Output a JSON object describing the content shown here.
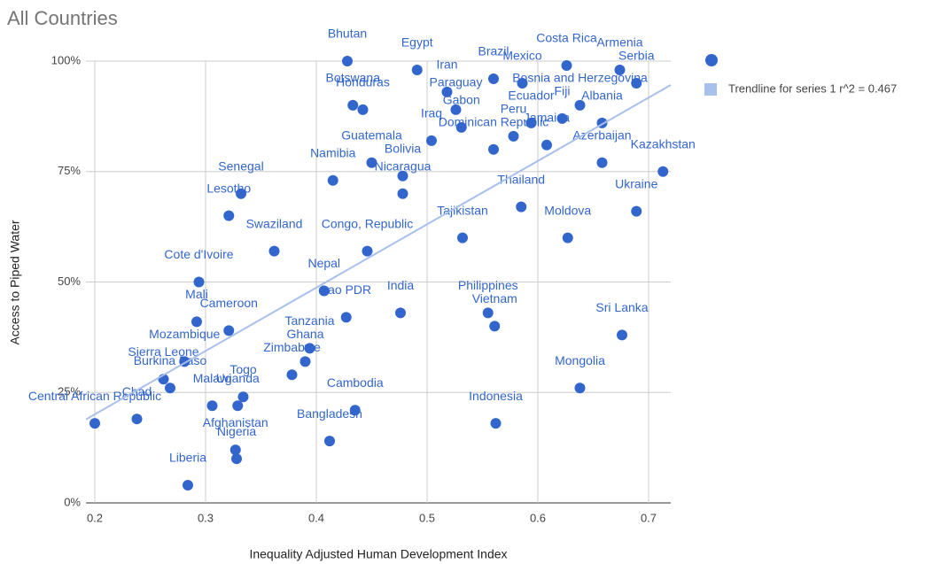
{
  "chart_data": {
    "type": "scatter",
    "title": "All Countries",
    "xlabel": "Inequality Adjusted Human Development Index",
    "ylabel": "Access to Piped Water",
    "xlim": [
      0.192,
      0.72
    ],
    "ylim": [
      0,
      100
    ],
    "xticks": [
      0.2,
      0.3,
      0.4,
      0.5,
      0.6,
      0.7
    ],
    "yticks": [
      {
        "value": 0,
        "label": "0%"
      },
      {
        "value": 25,
        "label": "25%"
      },
      {
        "value": 50,
        "label": "50%"
      },
      {
        "value": 75,
        "label": "75%"
      },
      {
        "value": 100,
        "label": "100%"
      }
    ],
    "grid": true,
    "legend": "right",
    "series": [
      {
        "color": "#3366cc",
        "labels": [
          "Bhutan",
          "Egypt",
          "Iran",
          "Brazil",
          "Mexico",
          "Costa Rica",
          "Armenia",
          "Serbia",
          "Botswana",
          "Honduras",
          "Bosnia and Herzegovina",
          "Paraguay",
          "Gabon",
          "Ecuador",
          "Fiji",
          "Albania",
          "Iraq",
          "Peru",
          "Jamaica",
          "Dominican Republic",
          "Guatemala",
          "Bolivia",
          "Namibia",
          "Nicaragua",
          "Azerbaijan",
          "Kazakhstan",
          "Senegal",
          "Lesotho",
          "Thailand",
          "Ukraine",
          "Tajikistan",
          "Moldova",
          "Swaziland",
          "Congo, Republic",
          "Cote d'Ivoire",
          "Nepal",
          "India",
          "Lao PDR",
          "Philippines",
          "Vietnam",
          "Sri Lanka",
          "Tanzania",
          "Cameroon",
          "Mali",
          "Ghana",
          "Mozambique",
          "Zimbabwe",
          "Sierra Leone",
          "Burkina Faso",
          "Togo",
          "Malawi",
          "Mongolia",
          "Cambodia",
          "Uganda",
          "Indonesia",
          "Chad",
          "Central African Republic",
          "Bangladesh",
          "Afghanistan",
          "Nigeria",
          "Liberia"
        ],
        "x": [
          0.428,
          0.491,
          0.518,
          0.56,
          0.586,
          0.626,
          0.674,
          0.689,
          0.433,
          0.442,
          0.638,
          0.526,
          0.531,
          0.594,
          0.622,
          0.658,
          0.504,
          0.578,
          0.608,
          0.56,
          0.45,
          0.478,
          0.415,
          0.478,
          0.658,
          0.713,
          0.332,
          0.321,
          0.585,
          0.689,
          0.532,
          0.627,
          0.362,
          0.446,
          0.294,
          0.407,
          0.476,
          0.427,
          0.555,
          0.561,
          0.676,
          0.394,
          0.321,
          0.292,
          0.39,
          0.281,
          0.378,
          0.262,
          0.268,
          0.334,
          0.306,
          0.638,
          0.435,
          0.329,
          0.562,
          0.238,
          0.2,
          0.412,
          0.327,
          0.328,
          0.284
        ],
        "values": [
          100,
          98,
          93,
          96,
          95,
          99,
          98,
          95,
          90,
          89,
          90,
          89,
          85,
          86,
          87,
          86,
          82,
          83,
          81,
          80,
          77,
          74,
          73,
          70,
          77,
          75,
          70,
          65,
          67,
          66,
          60,
          60,
          57,
          57,
          50,
          48,
          43,
          42,
          43,
          40,
          38,
          35,
          39,
          41,
          32,
          32,
          29,
          28,
          26,
          24,
          22,
          26,
          21,
          22,
          18,
          19,
          18,
          14,
          12,
          10,
          4
        ]
      },
      {
        "type": "line",
        "name": "Trendline for series 1 r^2 = 0.467",
        "color": "#a8c0ec",
        "x": [
          0.192,
          0.72
        ],
        "values": [
          18.9,
          94.6
        ]
      }
    ]
  }
}
